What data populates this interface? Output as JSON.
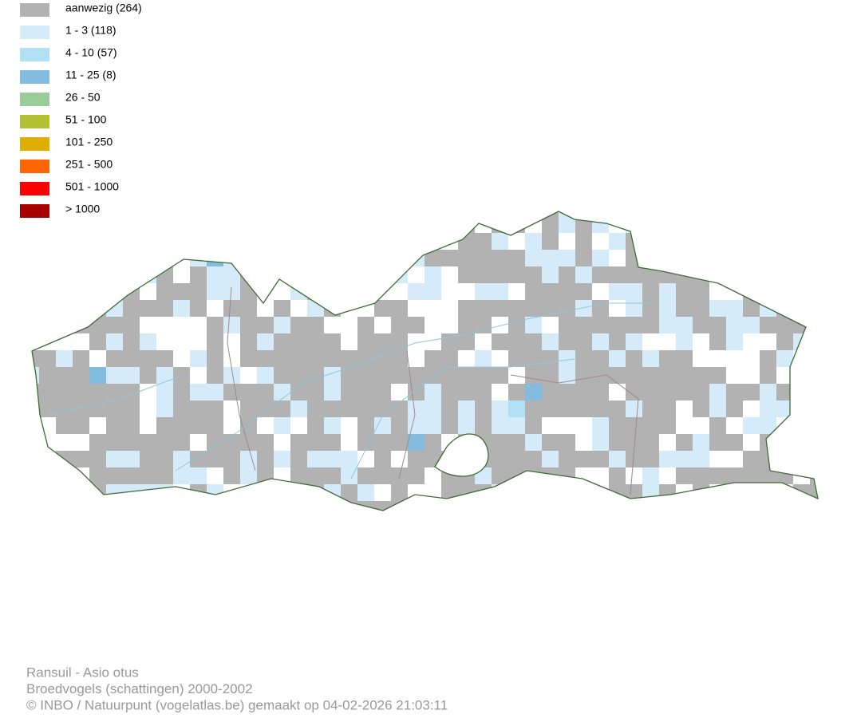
{
  "legend": {
    "items": [
      {
        "label": "aanwezig (264)",
        "color": "#b2b2b2"
      },
      {
        "label": "1 - 3 (118)",
        "color": "#d6ebf9"
      },
      {
        "label": "4 - 10 (57)",
        "color": "#b0dff6"
      },
      {
        "label": "11 - 25 (8)",
        "color": "#82bde0"
      },
      {
        "label": "26 - 50",
        "color": "#99cc99"
      },
      {
        "label": "51 - 100",
        "color": "#b0c232"
      },
      {
        "label": "101 - 250",
        "color": "#e0ae00"
      },
      {
        "label": "251 - 500",
        "color": "#ff6600"
      },
      {
        "label": "501 - 1000",
        "color": "#ff0000"
      },
      {
        "label": "> 1000",
        "color": "#a80000"
      }
    ]
  },
  "footer": {
    "lines": [
      "Ransuil - Asio otus",
      "Broedvogels (schattingen) 2000-2002",
      "© INBO / Natuurpunt (vogelatlas.be) gemaakt op 04-02-2026 21:03:11"
    ]
  }
}
